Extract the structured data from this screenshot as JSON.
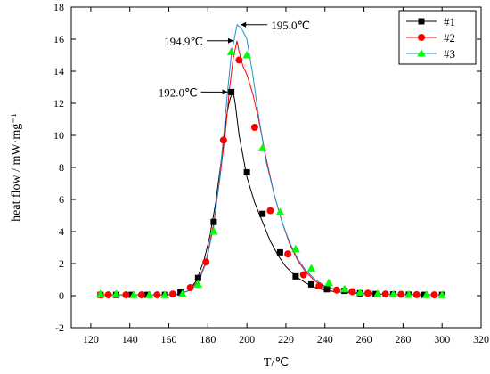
{
  "chart_data": {
    "type": "line",
    "title": "",
    "xlabel": "T/℃",
    "ylabel": "heat flow / mW·mg⁻¹",
    "xlim": [
      110,
      320
    ],
    "ylim": [
      -2,
      18
    ],
    "xticks": [
      120,
      140,
      160,
      180,
      200,
      220,
      240,
      260,
      280,
      300,
      320
    ],
    "yticks": [
      -2,
      0,
      2,
      4,
      6,
      8,
      10,
      12,
      14,
      16,
      18
    ],
    "grid": false,
    "legend_position": "top-right",
    "series": [
      {
        "name": "#1",
        "color": "#000000",
        "marker": "square",
        "curve_x": [
          125,
          130,
          135,
          140,
          145,
          150,
          155,
          160,
          165,
          170,
          174,
          178,
          181,
          184,
          187,
          189,
          190,
          191,
          192,
          193,
          194,
          196,
          198,
          200,
          204,
          208,
          212,
          216,
          220,
          225,
          230,
          235,
          240,
          245,
          250,
          255,
          260,
          270,
          280,
          290,
          300
        ],
        "curve_y": [
          0.05,
          0.05,
          0.05,
          0.05,
          0.05,
          0.05,
          0.05,
          0.06,
          0.1,
          0.3,
          0.9,
          2.2,
          3.7,
          5.8,
          8.6,
          10.6,
          11.5,
          12.1,
          12.5,
          12.7,
          12.0,
          10.0,
          8.7,
          7.4,
          5.8,
          4.6,
          3.4,
          2.5,
          1.8,
          1.2,
          0.8,
          0.5,
          0.35,
          0.25,
          0.2,
          0.15,
          0.12,
          0.08,
          0.06,
          0.05,
          0.05
        ],
        "marker_x": [
          125,
          133,
          141,
          149,
          158,
          166,
          175,
          183,
          192,
          200,
          208,
          217,
          225,
          233,
          241,
          250,
          258,
          266,
          275,
          283,
          291,
          300
        ],
        "marker_y": [
          0.05,
          0.05,
          0.05,
          0.05,
          0.05,
          0.2,
          1.1,
          4.6,
          12.7,
          7.7,
          5.1,
          2.7,
          1.2,
          0.7,
          0.4,
          0.3,
          0.15,
          0.1,
          0.08,
          0.06,
          0.05,
          0.05
        ]
      },
      {
        "name": "#2",
        "color": "#ff0000",
        "marker": "circle",
        "curve_x": [
          125,
          130,
          135,
          140,
          145,
          150,
          155,
          160,
          165,
          170,
          175,
          179,
          183,
          186,
          189,
          191,
          193,
          194.9,
          196,
          198,
          200,
          203,
          206,
          210,
          214,
          218,
          222,
          226,
          230,
          235,
          240,
          245,
          250,
          255,
          260,
          270,
          280,
          290,
          300
        ],
        "curve_y": [
          0.05,
          0.05,
          0.05,
          0.05,
          0.05,
          0.05,
          0.05,
          0.05,
          0.08,
          0.3,
          0.9,
          2.1,
          4.5,
          7.2,
          10.2,
          12.8,
          14.8,
          15.9,
          15.2,
          14.3,
          13.8,
          12.6,
          11.0,
          8.5,
          6.3,
          4.6,
          3.2,
          2.2,
          1.5,
          0.9,
          0.6,
          0.4,
          0.3,
          0.2,
          0.15,
          0.1,
          0.08,
          0.06,
          0.05
        ],
        "marker_x": [
          125,
          129,
          138,
          146,
          154,
          162,
          171,
          179,
          188,
          196,
          204,
          212,
          221,
          229,
          237,
          246,
          254,
          262,
          271,
          279,
          287,
          296
        ],
        "marker_y": [
          0.05,
          0.05,
          0.05,
          0.05,
          0.05,
          0.1,
          0.5,
          2.1,
          9.7,
          14.7,
          10.5,
          5.3,
          2.6,
          1.3,
          0.6,
          0.35,
          0.25,
          0.15,
          0.1,
          0.08,
          0.06,
          0.05
        ]
      },
      {
        "name": "#3",
        "color": "#1f8fd6",
        "marker": "triangle",
        "marker_color": "#00ff00",
        "curve_x": [
          125,
          130,
          135,
          140,
          145,
          150,
          155,
          160,
          165,
          170,
          175,
          179,
          183,
          186,
          188,
          190,
          192,
          194,
          195,
          196,
          198,
          200,
          203,
          206,
          210,
          214,
          218,
          222,
          226,
          230,
          235,
          240,
          245,
          250,
          255,
          260,
          270,
          280,
          290,
          300
        ],
        "curve_y": [
          0.05,
          0.05,
          0.05,
          0.05,
          0.05,
          0.05,
          0.05,
          0.05,
          0.1,
          0.3,
          0.8,
          2.0,
          4.3,
          7.4,
          9.9,
          12.6,
          15.0,
          16.3,
          16.9,
          16.8,
          16.5,
          16.0,
          13.8,
          11.2,
          8.3,
          6.3,
          4.6,
          3.3,
          2.3,
          1.6,
          1.0,
          0.6,
          0.4,
          0.3,
          0.2,
          0.15,
          0.1,
          0.08,
          0.06,
          0.05
        ],
        "marker_x": [
          125,
          133,
          142,
          150,
          158,
          167,
          175,
          183,
          192,
          200,
          208,
          217,
          225,
          233,
          242,
          250,
          258,
          267,
          275,
          283,
          292,
          300
        ],
        "marker_y": [
          0.1,
          0.1,
          0.05,
          0.05,
          0.05,
          0.1,
          0.7,
          4.0,
          15.2,
          15.0,
          9.2,
          5.2,
          2.9,
          1.7,
          0.8,
          0.4,
          0.2,
          0.1,
          0.08,
          0.06,
          0.05,
          0.05
        ]
      }
    ],
    "annotations": [
      {
        "text": "192.0℃",
        "x": 192,
        "y": 12.7,
        "side": "left"
      },
      {
        "text": "194.9℃",
        "x": 194.9,
        "y": 15.9,
        "side": "left"
      },
      {
        "text": "195.0℃",
        "x": 195,
        "y": 16.9,
        "side": "right"
      }
    ]
  }
}
